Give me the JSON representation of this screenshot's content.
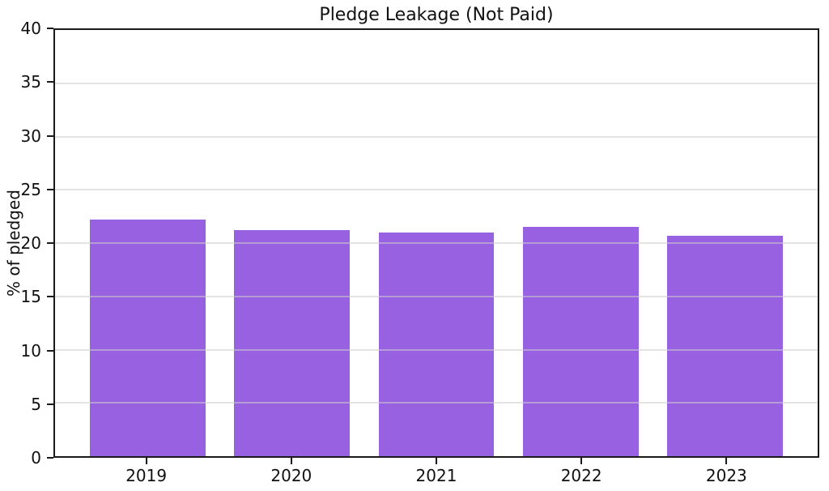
{
  "colors": {
    "bar": "#9761e2",
    "axis": "#1a1a1a",
    "grid": "#cdcdcd",
    "text": "#111111",
    "figure_background": "#ffffff"
  },
  "chart_data": {
    "type": "bar",
    "title": "Pledge Leakage (Not Paid)",
    "xlabel": "",
    "ylabel": "% of pledged",
    "categories": [
      "2019",
      "2020",
      "2021",
      "2022",
      "2023"
    ],
    "values": [
      22.2,
      21.2,
      21.0,
      21.5,
      20.7
    ],
    "ylim": [
      0,
      40
    ],
    "yticks": [
      0,
      5,
      10,
      15,
      20,
      25,
      30,
      35,
      40
    ],
    "grid": "horizontal-over-bars",
    "legend": "none",
    "bar_width_units": 0.8,
    "x_left_pad_units": 0.64,
    "x_span_units": 5.28
  }
}
